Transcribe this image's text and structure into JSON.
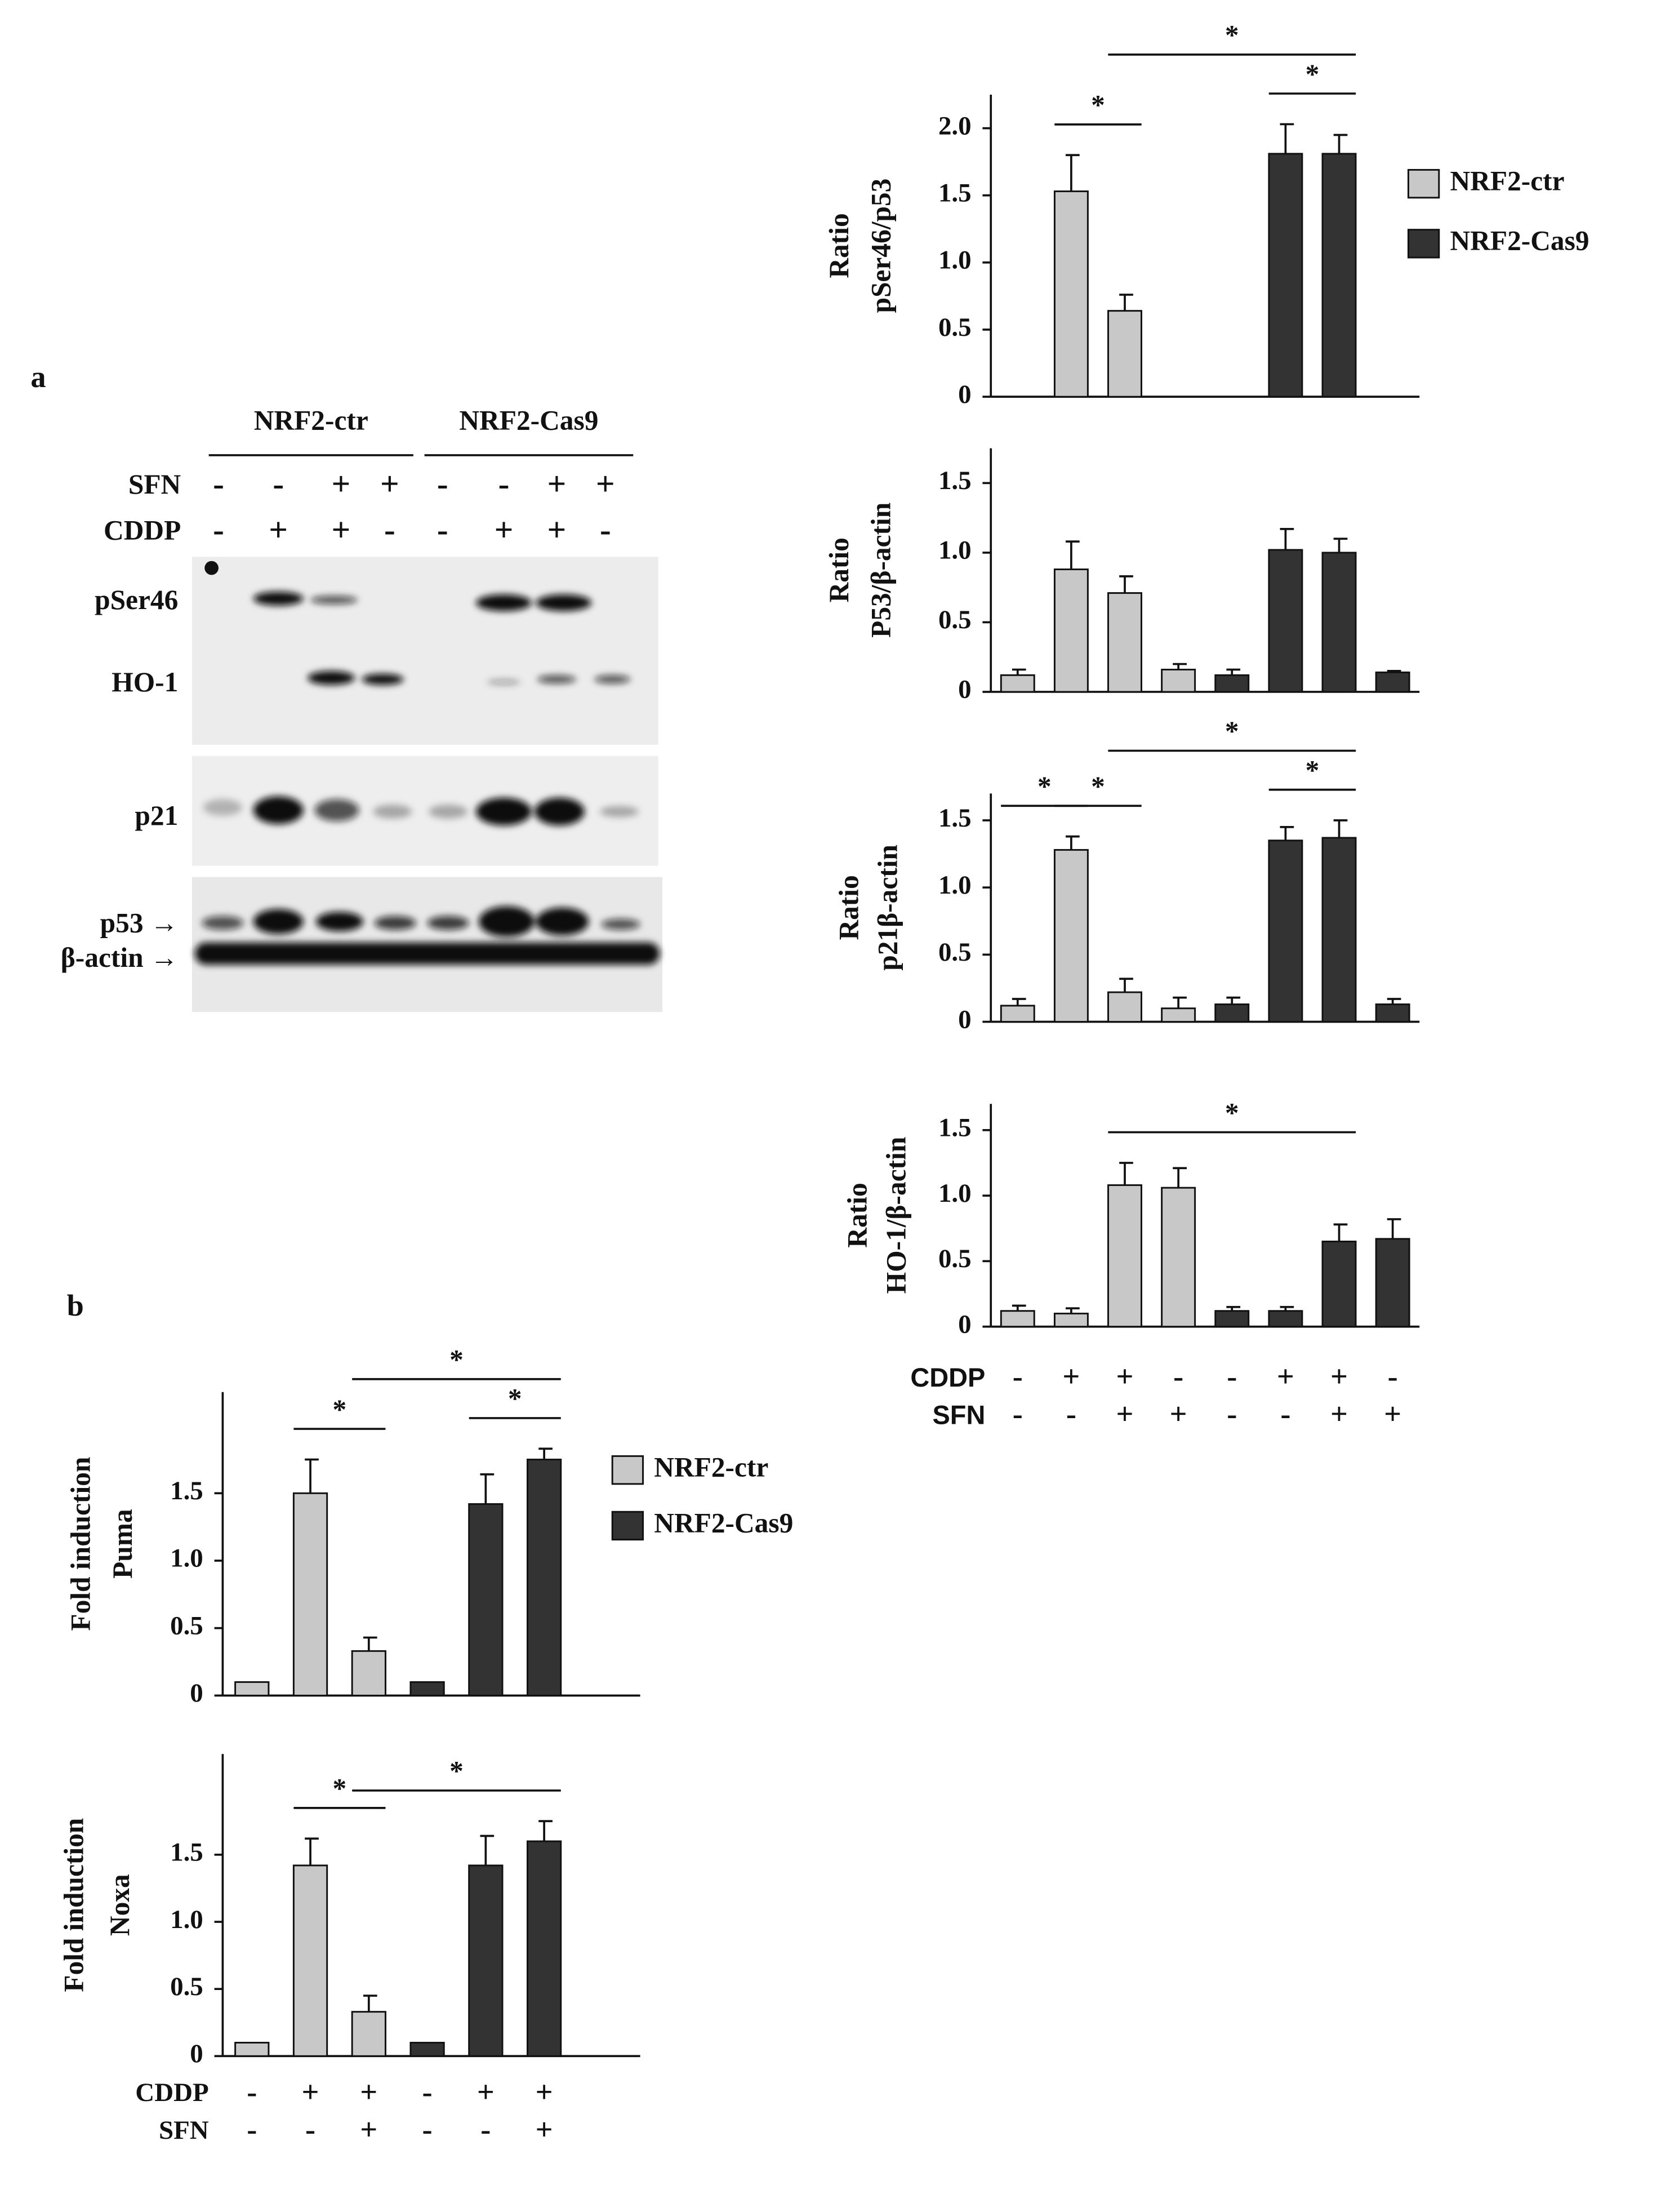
{
  "panels": [
    "a",
    "b"
  ],
  "blot": {
    "groups": [
      "NRF2-ctr",
      "NRF2-Cas9"
    ],
    "treatments": [
      {
        "label": "SFN",
        "signs": [
          "-",
          "-",
          "+",
          "+",
          "-",
          "-",
          "+",
          "+"
        ]
      },
      {
        "label": "CDDP",
        "signs": [
          "-",
          "+",
          "+",
          "-",
          "-",
          "+",
          "+",
          "-"
        ]
      }
    ],
    "bands": [
      "pSer46",
      "HO-1",
      "p21",
      "p53 →",
      "β-actin →"
    ]
  },
  "chart_data": [
    {
      "type": "bar",
      "ylabel": [
        "Ratio",
        "pSer46/p53"
      ],
      "ylim": [
        0,
        2.25
      ],
      "yticks": [
        0,
        0.5,
        {
          "value": 1,
          "label": "1.0"
        },
        1.5,
        {
          "value": 2,
          "label": "2.0"
        }
      ],
      "series": [
        {
          "name": "NRF2-ctr",
          "color": "#c8c8c8",
          "values": [
            null,
            1.53,
            0.64,
            null
          ],
          "errors": [
            null,
            0.27,
            0.12,
            null
          ]
        },
        {
          "name": "NRF2-Cas9",
          "color": "#333333",
          "values": [
            null,
            1.81,
            1.81,
            null
          ],
          "errors": [
            null,
            0.22,
            0.14,
            null
          ]
        }
      ],
      "legend": true,
      "brackets": [
        {
          "from": 1,
          "to": 2,
          "text": "*"
        },
        {
          "from": 5,
          "to": 6,
          "text": "*"
        },
        {
          "from": 2,
          "to": 6,
          "text": "*"
        }
      ]
    },
    {
      "type": "bar",
      "ylabel": [
        "Ratio",
        "P53/β-actin"
      ],
      "ylim": [
        0,
        1.75
      ],
      "yticks": [
        0,
        0.5,
        {
          "value": 1,
          "label": "1.0"
        },
        1.5
      ],
      "series": [
        {
          "color": "#c8c8c8",
          "values": [
            0.12,
            0.88,
            0.71,
            0.16
          ],
          "errors": [
            0.04,
            0.2,
            0.12,
            0.04
          ]
        },
        {
          "color": "#333333",
          "values": [
            0.12,
            1.02,
            1.0,
            0.14
          ],
          "errors": [
            0.04,
            0.15,
            0.1,
            0.01
          ]
        }
      ]
    },
    {
      "type": "bar",
      "ylabel": [
        "Ratio",
        "p21β-actin"
      ],
      "ylim": [
        0,
        1.7
      ],
      "yticks": [
        0,
        0.5,
        {
          "value": 1,
          "label": "1.0"
        },
        1.5
      ],
      "series": [
        {
          "color": "#c8c8c8",
          "values": [
            0.12,
            1.28,
            0.22,
            0.1
          ],
          "errors": [
            0.05,
            0.1,
            0.1,
            0.08
          ]
        },
        {
          "color": "#333333",
          "values": [
            0.13,
            1.35,
            1.37,
            0.13
          ],
          "errors": [
            0.05,
            0.1,
            0.13,
            0.04
          ]
        }
      ],
      "brackets": [
        {
          "from": 0,
          "to": 1,
          "text": "*"
        },
        {
          "from": 1,
          "to": 2,
          "text": "*"
        },
        {
          "from": 5,
          "to": 6,
          "text": "*"
        },
        {
          "from": 2,
          "to": 6,
          "text": "*"
        }
      ]
    },
    {
      "type": "bar",
      "ylabel": [
        "Ratio",
        "HO-1/β-actin"
      ],
      "ylim": [
        0,
        1.7
      ],
      "yticks": [
        0,
        0.5,
        {
          "value": 1,
          "label": "1.0"
        },
        1.5
      ],
      "series": [
        {
          "color": "#c8c8c8",
          "values": [
            0.12,
            0.1,
            1.08,
            1.06
          ],
          "errors": [
            0.04,
            0.04,
            0.17,
            0.15
          ]
        },
        {
          "color": "#333333",
          "values": [
            0.12,
            0.12,
            0.65,
            0.67
          ],
          "errors": [
            0.03,
            0.03,
            0.13,
            0.15
          ]
        }
      ],
      "brackets": [
        {
          "from": 2,
          "to": 6,
          "text": "*"
        }
      ],
      "conditions": [
        {
          "label": "CDDP",
          "signs": [
            "-",
            "+",
            "+",
            "-",
            "-",
            "+",
            "+",
            "-"
          ]
        },
        {
          "label": "SFN",
          "signs": [
            "-",
            "-",
            "+",
            "+",
            "-",
            "-",
            "+",
            "+"
          ]
        }
      ]
    },
    {
      "type": "bar",
      "ylabel": [
        "Fold induction",
        "Puma"
      ],
      "ylim": [
        0,
        2.25
      ],
      "yticks": [
        0,
        0.5,
        {
          "value": 1,
          "label": "1.0"
        },
        1.5
      ],
      "series": [
        {
          "name": "NRF2-ctr",
          "color": "#c8c8c8",
          "values": [
            0.1,
            1.5,
            0.33
          ],
          "errors": [
            0,
            0.25,
            0.1
          ]
        },
        {
          "name": "NRF2-Cas9",
          "color": "#333333",
          "values": [
            0.1,
            1.42,
            1.75
          ],
          "errors": [
            0,
            0.22,
            0.08
          ]
        }
      ],
      "legend": true,
      "brackets": [
        {
          "from": 1,
          "to": 2,
          "text": "*"
        },
        {
          "from": 4,
          "to": 5,
          "text": "*"
        },
        {
          "from": 2,
          "to": 5,
          "text": "*"
        }
      ]
    },
    {
      "type": "bar",
      "ylabel": [
        "Fold induction",
        "Noxa"
      ],
      "ylim": [
        0,
        2.25
      ],
      "yticks": [
        0,
        0.5,
        {
          "value": 1,
          "label": "1.0"
        },
        1.5
      ],
      "series": [
        {
          "color": "#c8c8c8",
          "values": [
            0.1,
            1.42,
            0.33
          ],
          "errors": [
            0,
            0.2,
            0.12
          ]
        },
        {
          "color": "#333333",
          "values": [
            0.1,
            1.42,
            1.6
          ],
          "errors": [
            0,
            0.22,
            0.15
          ]
        }
      ],
      "brackets": [
        {
          "from": 1,
          "to": 2,
          "text": "*"
        },
        {
          "from": 2,
          "to": 5,
          "text": "*"
        }
      ],
      "conditions": [
        {
          "label": "CDDP",
          "signs": [
            "-",
            "+",
            "+",
            "-",
            "+",
            "+"
          ]
        },
        {
          "label": "SFN",
          "signs": [
            "-",
            "-",
            "+",
            "-",
            "-",
            "+"
          ]
        }
      ]
    }
  ]
}
